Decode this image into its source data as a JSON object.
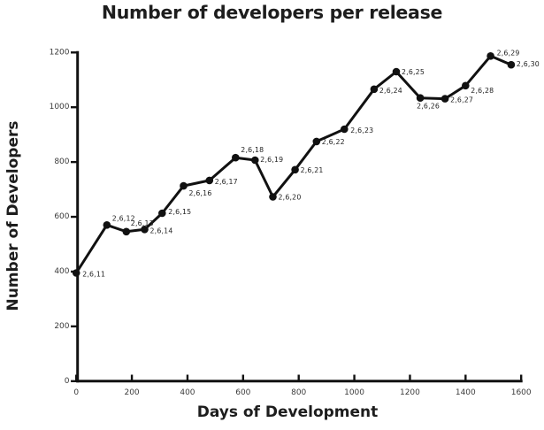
{
  "colors": {
    "background": "#ffffff",
    "line": "#111111",
    "axis": "#111111",
    "title": "#1d1d1d",
    "tick_label": "#3b3b3b",
    "point_label": "#222222"
  },
  "chart_data": {
    "type": "line",
    "title": "Number of developers per release",
    "xlabel": "Days of Development",
    "ylabel": "Number of Developers",
    "xlim": [
      0,
      1600
    ],
    "ylim": [
      0,
      1200
    ],
    "x_ticks": [
      0,
      200,
      400,
      600,
      800,
      1000,
      1200,
      1400,
      1600
    ],
    "y_ticks": [
      0,
      200,
      400,
      600,
      800,
      1000,
      1200
    ],
    "grid": false,
    "legend": false,
    "marker": "filled-circle",
    "points": [
      {
        "label": "2,6,11",
        "x": 0,
        "y": 395,
        "label_offset": [
          7,
          2
        ]
      },
      {
        "label": "2,6,12",
        "x": 110,
        "y": 570,
        "label_offset": [
          6,
          -7
        ]
      },
      {
        "label": "2,6,13",
        "x": 180,
        "y": 546,
        "label_offset": [
          5,
          -9
        ]
      },
      {
        "label": "2,6,14",
        "x": 246,
        "y": 554,
        "label_offset": [
          6,
          2
        ]
      },
      {
        "label": "2,6,15",
        "x": 309,
        "y": 613,
        "label_offset": [
          7,
          -1
        ]
      },
      {
        "label": "2,6,16",
        "x": 386,
        "y": 713,
        "label_offset": [
          6,
          9
        ]
      },
      {
        "label": "2,6,17",
        "x": 479,
        "y": 733,
        "label_offset": [
          6,
          2
        ]
      },
      {
        "label": "2,6,18",
        "x": 573,
        "y": 816,
        "label_offset": [
          6,
          -8
        ]
      },
      {
        "label": "2,6,19",
        "x": 643,
        "y": 807,
        "label_offset": [
          6,
          0
        ]
      },
      {
        "label": "2,6,20",
        "x": 707,
        "y": 673,
        "label_offset": [
          6,
          1
        ]
      },
      {
        "label": "2,6,21",
        "x": 787,
        "y": 772,
        "label_offset": [
          6,
          1
        ]
      },
      {
        "label": "2,6,22",
        "x": 864,
        "y": 875,
        "label_offset": [
          6,
          1
        ]
      },
      {
        "label": "2,6,23",
        "x": 964,
        "y": 920,
        "label_offset": [
          7,
          2
        ]
      },
      {
        "label": "2,6,24",
        "x": 1071,
        "y": 1066,
        "label_offset": [
          6,
          2
        ]
      },
      {
        "label": "2,6,25",
        "x": 1151,
        "y": 1130,
        "label_offset": [
          6,
          1
        ]
      },
      {
        "label": "2,6,26",
        "x": 1237,
        "y": 1034,
        "label_offset": [
          -4,
          10
        ]
      },
      {
        "label": "2,6,27",
        "x": 1326,
        "y": 1031,
        "label_offset": [
          6,
          2
        ]
      },
      {
        "label": "2,6,28",
        "x": 1400,
        "y": 1079,
        "label_offset": [
          6,
          6
        ]
      },
      {
        "label": "2,6,29",
        "x": 1490,
        "y": 1187,
        "label_offset": [
          7,
          -3
        ]
      },
      {
        "label": "2,6,30",
        "x": 1564,
        "y": 1155,
        "label_offset": [
          6,
          0
        ]
      }
    ]
  }
}
